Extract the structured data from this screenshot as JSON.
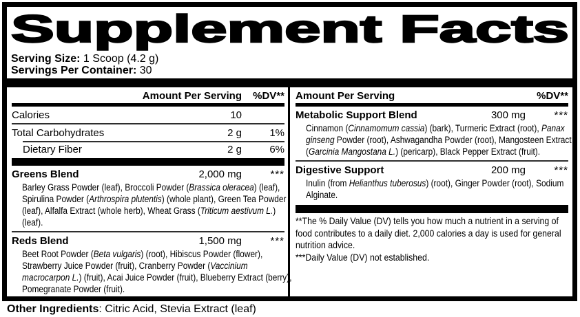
{
  "title": "Supplement Facts",
  "serving_info": {
    "size_label": "Serving Size:",
    "size_value": " 1 Scoop (4.2 g)",
    "container_label": "Servings Per Container:",
    "container_value": " 30"
  },
  "left_column": {
    "header": {
      "amount": "Amount Per Serving",
      "dv": "%DV**"
    },
    "nutrients": [
      {
        "name": "Calories",
        "amount": "10",
        "dv": "",
        "indent": false
      },
      {
        "name": "Total Carbohydrates",
        "amount": "2 g",
        "dv": "1%",
        "indent": false
      },
      {
        "name": "Dietary Fiber",
        "amount": "2 g",
        "dv": "6%",
        "indent": true
      }
    ],
    "blends": [
      {
        "name": "Greens Blend",
        "amount": "2,000 mg",
        "dv": "***",
        "ingredients": [
          {
            "text": "Barley Grass Powder (leaf), Broccoli Powder (",
            "italic": false
          },
          {
            "text": "Brassica oleracea",
            "italic": true
          },
          {
            "text": ") (leaf), Spirulina Powder (",
            "italic": false
          },
          {
            "text": "Arthrospira plutentis",
            "italic": true
          },
          {
            "text": ") (whole plant), Green Tea Powder (leaf), Alfalfa Extract (whole herb), Wheat Grass (",
            "italic": false
          },
          {
            "text": "Triticum aestivum L.",
            "italic": true
          },
          {
            "text": ") (leaf).",
            "italic": false
          }
        ]
      },
      {
        "name": "Reds Blend",
        "amount": "1,500 mg",
        "dv": "***",
        "ingredients": [
          {
            "text": "Beet Root Powder (",
            "italic": false
          },
          {
            "text": "Beta vulgaris",
            "italic": true
          },
          {
            "text": ") (root), Hibiscus Powder (flower), Strawberry Juice Powder (fruit), Cranberry Powder (",
            "italic": false
          },
          {
            "text": "Vaccinium macrocarpon L.",
            "italic": true
          },
          {
            "text": ") (fruit), Acai Juice Powder (fruit), Blueberry Extract (berry), Pomegranate Powder (fruit).",
            "italic": false
          }
        ]
      }
    ]
  },
  "right_column": {
    "header": {
      "amount": "Amount Per Serving",
      "dv": "%DV**"
    },
    "blends": [
      {
        "name": "Metabolic Support Blend",
        "amount": "300 mg",
        "dv": "***",
        "ingredients": [
          {
            "text": "Cinnamon (",
            "italic": false
          },
          {
            "text": "Cinnamomum cassia",
            "italic": true
          },
          {
            "text": ") (bark), Turmeric Extract (root), ",
            "italic": false
          },
          {
            "text": "Panax ginseng",
            "italic": true
          },
          {
            "text": " Powder (root), Ashwagandha Powder (root), Mangosteen Extract (",
            "italic": false
          },
          {
            "text": "Garcinia Mangostana L.",
            "italic": true
          },
          {
            "text": ") (pericarp), Black Pepper Extract (fruit).",
            "italic": false
          }
        ]
      },
      {
        "name": "Digestive Support",
        "amount": "200 mg",
        "dv": "***",
        "ingredients": [
          {
            "text": "Inulin (from ",
            "italic": false
          },
          {
            "text": "Helianthus tuberosus",
            "italic": true
          },
          {
            "text": ") (root), Ginger Powder (root), Sodium Alginate.",
            "italic": false
          }
        ]
      }
    ],
    "footnotes": [
      "**The % Daily Value (DV) tells you how much a nutrient in a serving of food contributes to a daily diet. 2,000 calories a day is used for general nutrition advice.",
      "***Daily Value (DV) not established."
    ]
  },
  "other_ingredients": {
    "label": "Other Ingredients",
    "value": ": Citric Acid, Stevia Extract (leaf)"
  },
  "colors": {
    "background": "#ffffff",
    "text": "#000000",
    "rules": "#000000"
  }
}
